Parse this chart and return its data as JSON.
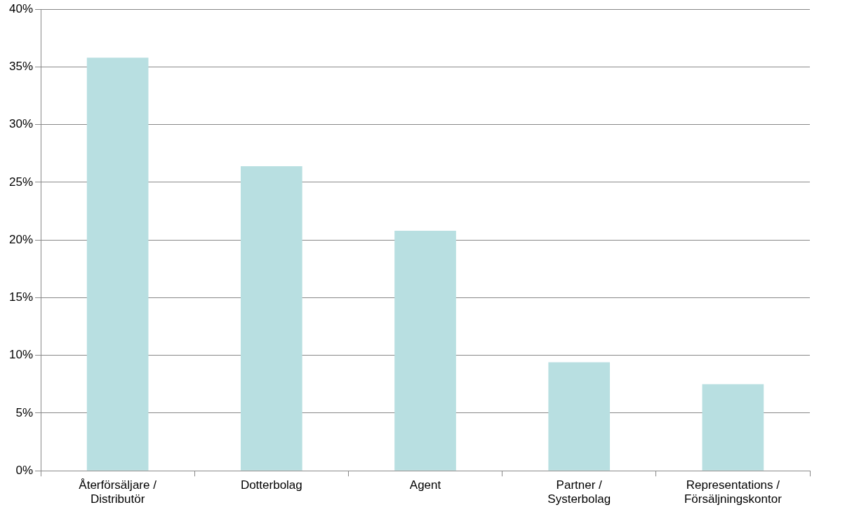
{
  "chart_data": {
    "type": "bar",
    "categories": [
      "Återförsäljare / Distributör",
      "Dotterbolag",
      "Agent",
      "Partner / Systerbolag",
      "Representations / Försäljningskontor"
    ],
    "values": [
      35.8,
      26.4,
      20.8,
      9.4,
      7.5
    ],
    "color": "#b8dfe1",
    "ylim": [
      0,
      40
    ],
    "yticks": [
      {
        "value": 0,
        "label": "0%"
      },
      {
        "value": 5,
        "label": "5%"
      },
      {
        "value": 10,
        "label": "10%"
      },
      {
        "value": 15,
        "label": "15%"
      },
      {
        "value": 20,
        "label": "20%"
      },
      {
        "value": 25,
        "label": "25%"
      },
      {
        "value": 30,
        "label": "30%"
      },
      {
        "value": 35,
        "label": "35%"
      },
      {
        "value": 40,
        "label": "40%"
      }
    ],
    "grid": "y",
    "legend": false
  }
}
